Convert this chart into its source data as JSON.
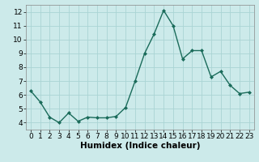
{
  "x": [
    0,
    1,
    2,
    3,
    4,
    5,
    6,
    7,
    8,
    9,
    10,
    11,
    12,
    13,
    14,
    15,
    16,
    17,
    18,
    19,
    20,
    21,
    22,
    23
  ],
  "y": [
    6.3,
    5.5,
    4.4,
    4.0,
    4.7,
    4.1,
    4.4,
    4.35,
    4.35,
    4.45,
    5.1,
    7.0,
    9.0,
    10.4,
    12.1,
    11.0,
    8.6,
    9.2,
    9.2,
    7.3,
    7.7,
    6.7,
    6.1,
    6.2
  ],
  "xlabel": "Humidex (Indice chaleur)",
  "ylim": [
    3.5,
    12.5
  ],
  "xlim": [
    -0.5,
    23.5
  ],
  "yticks": [
    4,
    5,
    6,
    7,
    8,
    9,
    10,
    11,
    12
  ],
  "xticks": [
    0,
    1,
    2,
    3,
    4,
    5,
    6,
    7,
    8,
    9,
    10,
    11,
    12,
    13,
    14,
    15,
    16,
    17,
    18,
    19,
    20,
    21,
    22,
    23
  ],
  "line_color": "#1a6b5a",
  "marker_color": "#1a6b5a",
  "bg_color": "#cceaea",
  "grid_color": "#aad4d4",
  "tick_label_fontsize": 6.5,
  "xlabel_fontsize": 7.5
}
